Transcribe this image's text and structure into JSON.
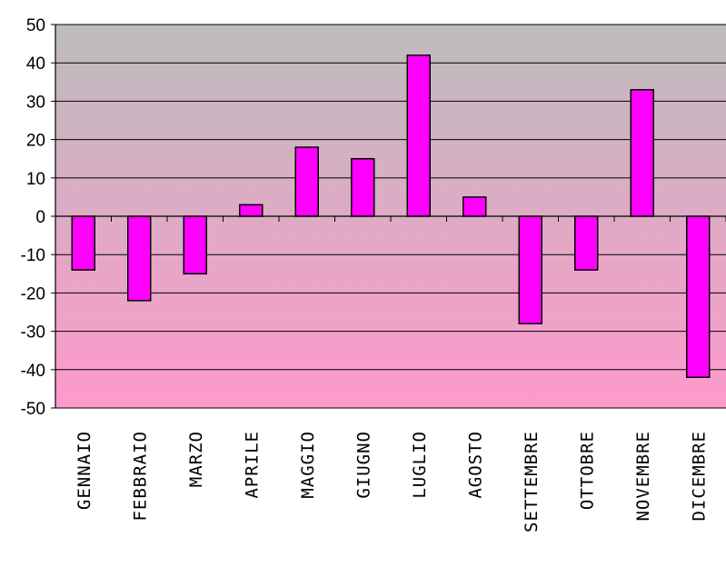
{
  "chart_data": {
    "type": "bar",
    "title": "",
    "xlabel": "",
    "ylabel": "",
    "ylim": [
      -50,
      50
    ],
    "ytick_step": 10,
    "grid": true,
    "categories": [
      "GENNAIO",
      "FEBBRAIO",
      "MARZO",
      "APRILE",
      "MAGGIO",
      "GIUGNO",
      "LUGLIO",
      "AGOSTO",
      "SETTEMBRE",
      "OTTOBRE",
      "NOVEMBRE",
      "DICEMBRE"
    ],
    "yticks": [
      "50",
      "40",
      "30",
      "20",
      "10",
      "0",
      "-10",
      "-20",
      "-30",
      "-40",
      "-50"
    ],
    "values": [
      -14,
      -22,
      -15,
      3,
      18,
      15,
      42,
      5,
      -28,
      -14,
      33,
      -42
    ],
    "colors": {
      "bar_fill": "#ff00ff",
      "bar_stroke": "#000000",
      "plot_gradient_top": "#bdbdbd",
      "plot_gradient_bottom": "#ff99cc",
      "gridline": "#000000"
    }
  }
}
